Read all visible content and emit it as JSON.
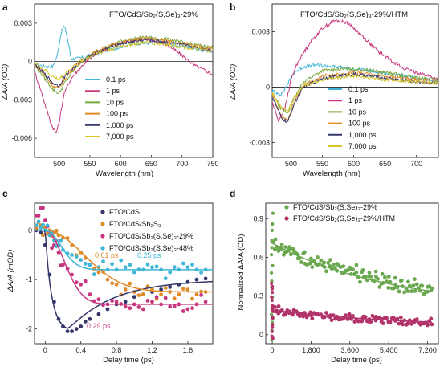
{
  "chart_data": [
    {
      "panel": "a",
      "type": "line",
      "title": "FTO/CdS/Sb₂(S,Se)₃-29%",
      "xlabel": "Wavelength (nm)",
      "ylabel": "ΔA/A (OD)",
      "xlim": [
        460,
        750
      ],
      "ylim": [
        -0.0075,
        0.0045
      ],
      "xticks": [
        500,
        550,
        600,
        650,
        700,
        750
      ],
      "xtick_labels": [
        "500",
        "550",
        "600",
        "650",
        "700",
        "750"
      ],
      "yticks": [
        0.003,
        0,
        -0.003,
        -0.006
      ],
      "ytick_labels": [
        "0.003",
        "0",
        "-0.003",
        "-0.006"
      ],
      "legend_position": "center",
      "series": [
        {
          "name": "0.1 ps",
          "color": "#3fb6d8",
          "x": [
            460,
            480,
            490,
            497,
            503,
            508,
            512,
            520,
            540,
            580,
            620,
            660,
            700,
            750
          ],
          "y": [
            -0.0002,
            -0.0004,
            -0.0004,
            0.0005,
            0.0022,
            0.0028,
            0.0022,
            0.0002,
            0.0003,
            0.0009,
            0.0014,
            0.0015,
            0.0012,
            0.0008
          ]
        },
        {
          "name": "1 ps",
          "color": "#c8377f",
          "x": [
            460,
            470,
            480,
            488,
            495,
            500,
            508,
            520,
            540,
            560,
            590,
            630,
            670,
            700,
            720,
            750
          ],
          "y": [
            -0.0008,
            -0.0022,
            -0.0038,
            -0.005,
            -0.0056,
            -0.0048,
            -0.0025,
            -0.0013,
            -0.0002,
            0.0006,
            0.0013,
            0.0018,
            0.0015,
            0.0005,
            -0.0003,
            -0.001
          ]
        },
        {
          "name": "10 ps",
          "color": "#7aa83a",
          "x": [
            460,
            475,
            490,
            500,
            510,
            530,
            560,
            600,
            640,
            680,
            720,
            750
          ],
          "y": [
            -0.0003,
            -0.0012,
            -0.0022,
            -0.0025,
            -0.0016,
            -0.0003,
            0.0008,
            0.0016,
            0.0019,
            0.0017,
            0.0013,
            0.0011
          ]
        },
        {
          "name": "100 ps",
          "color": "#e08b2a",
          "x": [
            460,
            475,
            490,
            500,
            510,
            530,
            560,
            600,
            640,
            680,
            720,
            750
          ],
          "y": [
            -0.0002,
            -0.001,
            -0.0019,
            -0.0021,
            -0.0013,
            -0.0002,
            0.0008,
            0.0015,
            0.0018,
            0.0016,
            0.0012,
            0.001
          ]
        },
        {
          "name": "1,000 ps",
          "color": "#35366b",
          "x": [
            460,
            475,
            490,
            500,
            510,
            530,
            560,
            600,
            640,
            680,
            720,
            750
          ],
          "y": [
            -0.0002,
            -0.0009,
            -0.0017,
            -0.0019,
            -0.0011,
            -0.0002,
            0.0007,
            0.0014,
            0.0017,
            0.0015,
            0.0011,
            0.0009
          ]
        },
        {
          "name": "7,000 ps",
          "color": "#d8c52a",
          "x": [
            460,
            475,
            490,
            500,
            510,
            530,
            560,
            600,
            640,
            680,
            720,
            750
          ],
          "y": [
            -0.0001,
            -0.0006,
            -0.0012,
            -0.0014,
            -0.0009,
            -0.0001,
            0.0006,
            0.0012,
            0.0015,
            0.0013,
            0.001,
            0.0008
          ]
        }
      ]
    },
    {
      "panel": "b",
      "type": "line",
      "title": "FTO/CdS/Sb₂(S,Se)₃-29%/HTM",
      "xlabel": "Wavelength (nm)",
      "ylabel": "ΔA/A (OD)",
      "xlim": [
        470,
        735
      ],
      "ylim": [
        -0.0038,
        0.0045
      ],
      "xticks": [
        500,
        550,
        600,
        650,
        700
      ],
      "xtick_labels": [
        "500",
        "550",
        "600",
        "650",
        "700"
      ],
      "yticks": [
        0.003,
        0,
        -0.003
      ],
      "ytick_labels": [
        "0.003",
        "0",
        "-0.003"
      ],
      "legend_position": "center",
      "series": [
        {
          "name": "0.1 ps",
          "color": "#3fb6d8",
          "x": [
            470,
            485,
            495,
            505,
            520,
            540,
            570,
            600,
            640,
            680,
            720,
            735
          ],
          "y": [
            -0.0002,
            -0.0004,
            0.0002,
            0.0008,
            0.0011,
            0.0012,
            0.0011,
            0.001,
            0.0008,
            0.0006,
            0.0004,
            0.0003
          ]
        },
        {
          "name": "1 ps",
          "color": "#c8377f",
          "x": [
            470,
            480,
            490,
            500,
            510,
            530,
            550,
            570,
            590,
            610,
            640,
            680,
            720,
            735
          ],
          "y": [
            -0.0008,
            -0.0018,
            -0.0012,
            0.0004,
            0.0013,
            0.0024,
            0.0032,
            0.0036,
            0.0035,
            0.0029,
            0.0019,
            0.001,
            0.0006,
            0.0004
          ]
        },
        {
          "name": "10 ps",
          "color": "#7aa83a",
          "x": [
            470,
            485,
            495,
            505,
            520,
            550,
            600,
            650,
            700,
            735
          ],
          "y": [
            -0.0003,
            -0.0012,
            -0.0014,
            -0.0006,
            0.0003,
            0.0009,
            0.001,
            0.0008,
            0.0005,
            0.0004
          ]
        },
        {
          "name": "100 ps",
          "color": "#e08b2a",
          "x": [
            470,
            485,
            495,
            505,
            520,
            550,
            600,
            650,
            700,
            735
          ],
          "y": [
            -0.0004,
            -0.0016,
            -0.0018,
            -0.0008,
            0.0001,
            0.0006,
            0.0008,
            0.0006,
            0.0004,
            0.0003
          ]
        },
        {
          "name": "1,000 ps",
          "color": "#35366b",
          "x": [
            470,
            485,
            495,
            505,
            520,
            550,
            600,
            650,
            700,
            735
          ],
          "y": [
            -0.0005,
            -0.0017,
            -0.0019,
            -0.0009,
            0.0,
            0.0005,
            0.0007,
            0.0005,
            0.0003,
            0.0002
          ]
        },
        {
          "name": "7,000 ps",
          "color": "#d8c52a",
          "x": [
            470,
            485,
            495,
            505,
            520,
            550,
            600,
            650,
            700,
            735
          ],
          "y": [
            -0.0003,
            -0.0011,
            -0.0013,
            -0.0006,
            0.0001,
            0.0004,
            0.0006,
            0.0004,
            0.0003,
            0.0002
          ]
        }
      ]
    },
    {
      "panel": "c",
      "type": "scatter",
      "xlabel": "Delay time (ps)",
      "ylabel": "ΔA/A (mOD)",
      "xlim": [
        -0.12,
        1.88
      ],
      "ylim": [
        -2.3,
        0.55
      ],
      "xticks": [
        0,
        0.4,
        0.8,
        1.2,
        1.6
      ],
      "xtick_labels": [
        "0",
        "0.4",
        "0.8",
        "1.2",
        "1.6"
      ],
      "yticks": [
        0,
        -1,
        -2
      ],
      "ytick_labels": [
        "0",
        "-1",
        "-2"
      ],
      "legend_position": "top-right",
      "annotations": [
        {
          "text": "0.61 ps",
          "color": "#e08b2a"
        },
        {
          "text": "0.25 ps",
          "color": "#3fb6d8"
        },
        {
          "text": "0.29 ps",
          "color": "#c8377f"
        }
      ],
      "series": [
        {
          "name": "FTO/CdS",
          "color": "#35366b",
          "fit": {
            "amplitude": -2.05,
            "plateau": -1.0,
            "rise_tau": 0.07,
            "decay_tau": 0.5
          },
          "x": [
            -0.1,
            -0.05,
            0.0,
            0.05,
            0.1,
            0.15,
            0.2,
            0.25,
            0.3,
            0.35,
            0.4,
            0.45,
            0.5,
            0.6,
            0.7,
            0.8,
            0.9,
            1.0,
            1.1,
            1.2,
            1.3,
            1.4,
            1.5,
            1.6,
            1.7,
            1.8
          ],
          "y": [
            0.0,
            -0.05,
            -0.3,
            -0.9,
            -1.45,
            -1.8,
            -1.95,
            -2.05,
            -2.05,
            -2.0,
            -1.95,
            -1.85,
            -1.8,
            -1.7,
            -1.6,
            -1.5,
            -1.45,
            -1.35,
            -1.3,
            -1.25,
            -1.2,
            -1.15,
            -1.1,
            -1.05,
            -1.0,
            -0.98
          ]
        },
        {
          "name": "FTO/CdS/Sb₂S₃",
          "color": "#e08b2a",
          "fit": {
            "plateau": -1.25,
            "tau": 0.61
          },
          "x": [
            -0.1,
            -0.05,
            0.0,
            0.05,
            0.1,
            0.15,
            0.2,
            0.3,
            0.4,
            0.5,
            0.6,
            0.7,
            0.8,
            0.9,
            1.0,
            1.1,
            1.2,
            1.3,
            1.4,
            1.5,
            1.6,
            1.7,
            1.8
          ],
          "y": [
            0.05,
            0.1,
            0.05,
            0.0,
            -0.05,
            -0.1,
            -0.15,
            -0.3,
            -0.45,
            -0.7,
            -0.85,
            -1.0,
            -1.1,
            -1.2,
            -1.25,
            -1.3,
            -1.2,
            -1.3,
            -1.25,
            -1.3,
            -1.2,
            -1.3,
            -1.25
          ]
        },
        {
          "name": "FTO/CdS/Sb₂(S,Se)₃-29%",
          "color": "#c8377f",
          "fit": {
            "plateau": -1.5,
            "tau": 0.29
          },
          "x": [
            -0.1,
            -0.05,
            0.0,
            0.05,
            0.1,
            0.15,
            0.2,
            0.3,
            0.4,
            0.5,
            0.6,
            0.7,
            0.8,
            0.9,
            1.0,
            1.1,
            1.2,
            1.3,
            1.4,
            1.5,
            1.6,
            1.7,
            1.8
          ],
          "y": [
            0.3,
            0.45,
            0.2,
            -0.1,
            -0.3,
            -0.45,
            -0.7,
            -0.9,
            -1.1,
            -1.3,
            -1.4,
            -1.5,
            -1.45,
            -1.55,
            -1.5,
            -1.6,
            -1.45,
            -1.5,
            -1.55,
            -1.5,
            -1.6,
            -1.5,
            -1.45
          ]
        },
        {
          "name": "FTO/CdS/Sb₂(S,Se)₃-48%",
          "color": "#3fb6d8",
          "fit": {
            "plateau": -0.8,
            "tau": 0.25
          },
          "x": [
            -0.1,
            -0.05,
            0.0,
            0.05,
            0.1,
            0.15,
            0.2,
            0.3,
            0.4,
            0.5,
            0.6,
            0.7,
            0.8,
            0.9,
            1.0,
            1.1,
            1.2,
            1.3,
            1.4,
            1.5,
            1.6,
            1.7,
            1.8
          ],
          "y": [
            0.1,
            0.05,
            0.0,
            -0.1,
            -0.2,
            -0.3,
            -0.4,
            -0.5,
            -0.6,
            -0.7,
            -0.75,
            -0.8,
            -0.8,
            -0.75,
            -0.85,
            -0.8,
            -0.75,
            -0.8,
            -0.85,
            -0.8,
            -0.75,
            -0.8,
            -0.8
          ]
        }
      ]
    },
    {
      "panel": "d",
      "type": "scatter",
      "xlabel": "Delay time (ps)",
      "ylabel": "Normalized ΔA/A (OD)",
      "xlim": [
        -300,
        7700
      ],
      "ylim": [
        -0.07,
        1.02
      ],
      "xticks": [
        0,
        1800,
        3600,
        5400,
        7200
      ],
      "xtick_labels": [
        "0",
        "1,800",
        "3,600",
        "5,400",
        "7,200"
      ],
      "yticks": [
        0.9,
        0.6,
        0.3,
        0
      ],
      "ytick_labels": [
        "0.9",
        "0.6",
        "0.3",
        "0"
      ],
      "legend_position": "top-right",
      "series": [
        {
          "name": "FTO/CdS/Sb₂(S,Se)₃-29%",
          "color": "#6aa84f",
          "fit": {
            "y0": 0.71,
            "yinf": 0.2,
            "tau": 5600
          },
          "x": [
            0,
            150,
            300,
            450,
            600,
            800,
            1000,
            1200,
            1500,
            1800,
            2100,
            2400,
            2700,
            3000,
            3300,
            3600,
            3900,
            4200,
            4500,
            4800,
            5100,
            5400,
            5700,
            6000,
            6300,
            6600,
            6900,
            7200,
            7400
          ],
          "y": [
            0.72,
            0.74,
            0.66,
            0.7,
            0.64,
            0.68,
            0.66,
            0.62,
            0.64,
            0.59,
            0.6,
            0.56,
            0.58,
            0.55,
            0.53,
            0.52,
            0.54,
            0.5,
            0.48,
            0.49,
            0.47,
            0.45,
            0.44,
            0.42,
            0.41,
            0.43,
            0.38,
            0.37,
            0.36
          ]
        },
        {
          "name": "FTO/CdS/Sb₂(S,Se)₃-29%/HTM",
          "color": "#b2336a",
          "fit": {
            "y0": 0.19,
            "yinf": 0.06,
            "tau": 6000
          },
          "x": [
            0,
            150,
            300,
            450,
            600,
            800,
            1000,
            1200,
            1500,
            1800,
            2100,
            2400,
            2700,
            3000,
            3300,
            3600,
            3900,
            4200,
            4500,
            4800,
            5100,
            5400,
            5700,
            6000,
            6300,
            6600,
            6900,
            7200,
            7400
          ],
          "y": [
            0.2,
            0.18,
            0.22,
            0.19,
            0.17,
            0.18,
            0.19,
            0.16,
            0.17,
            0.15,
            0.16,
            0.14,
            0.15,
            0.14,
            0.13,
            0.14,
            0.12,
            0.13,
            0.12,
            0.11,
            0.12,
            0.1,
            0.11,
            0.1,
            0.09,
            0.1,
            0.09,
            0.08,
            0.08
          ]
        }
      ]
    }
  ]
}
